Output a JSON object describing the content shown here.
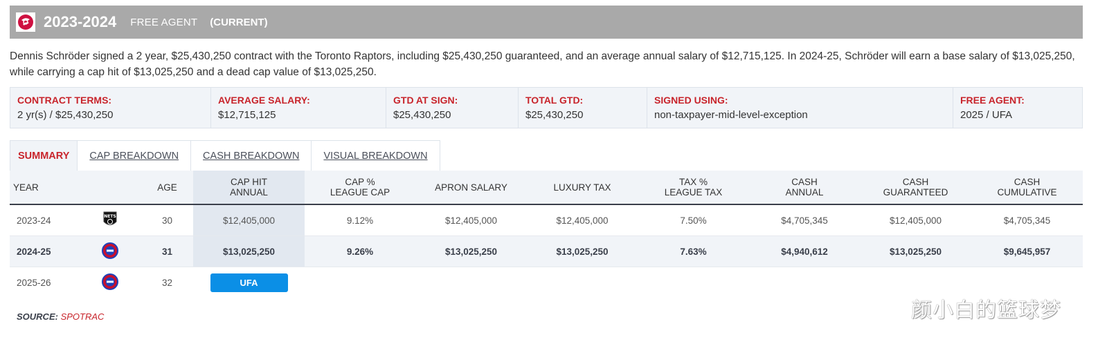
{
  "header": {
    "season": "2023-2024",
    "status": "FREE AGENT",
    "current": "(CURRENT)",
    "logo_icon": "raptors-logo-icon"
  },
  "description": "Dennis Schröder signed a 2 year, $25,430,250 contract with the Toronto Raptors, including $25,430,250 guaranteed, and an average annual salary of $12,715,125. In 2024-25, Schröder will earn a base salary of $13,025,250, while carrying a cap hit of $13,025,250 and a dead cap value of $13,025,250.",
  "terms": [
    {
      "label": "CONTRACT TERMS:",
      "value": "2 yr(s) / $25,430,250"
    },
    {
      "label": "AVERAGE SALARY:",
      "value": "$12,715,125"
    },
    {
      "label": "GTD AT SIGN:",
      "value": "$25,430,250"
    },
    {
      "label": "TOTAL GTD:",
      "value": "$25,430,250"
    },
    {
      "label": "SIGNED USING:",
      "value": "non-taxpayer-mid-level-exception"
    },
    {
      "label": "FREE AGENT:",
      "value": "2025 / UFA"
    }
  ],
  "tabs": [
    {
      "label": "SUMMARY",
      "active": true
    },
    {
      "label": "CAP BREAKDOWN"
    },
    {
      "label": "CASH BREAKDOWN"
    },
    {
      "label": "VISUAL BREAKDOWN"
    }
  ],
  "table": {
    "headers": {
      "year": "YEAR",
      "age": "AGE",
      "cap_hit_1": "CAP HIT",
      "cap_hit_2": "ANNUAL",
      "cap_pct_1": "CAP %",
      "cap_pct_2": "LEAGUE CAP",
      "apron": "APRON SALARY",
      "lux": "LUXURY TAX",
      "tax_pct_1": "TAX %",
      "tax_pct_2": "LEAGUE TAX",
      "cash_annual_1": "CASH",
      "cash_annual_2": "ANNUAL",
      "cash_gtd_1": "CASH",
      "cash_gtd_2": "GUARANTEED",
      "cash_cum_1": "CASH",
      "cash_cum_2": "CUMULATIVE"
    },
    "rows": [
      {
        "year": "2023-24",
        "team_icon": "nets-logo-icon",
        "age": "30",
        "cap_hit": "$12,405,000",
        "cap_pct": "9.12%",
        "apron": "$12,405,000",
        "lux": "$12,405,000",
        "tax_pct": "7.50%",
        "cash_annual": "$4,705,345",
        "cash_gtd": "$12,405,000",
        "cash_cum": "$4,705,345"
      },
      {
        "year": "2024-25",
        "team_icon": "pistons-logo-icon",
        "age": "31",
        "cap_hit": "$13,025,250",
        "cap_pct": "9.26%",
        "apron": "$13,025,250",
        "lux": "$13,025,250",
        "tax_pct": "7.63%",
        "cash_annual": "$4,940,612",
        "cash_gtd": "$13,025,250",
        "cash_cum": "$9,645,957"
      },
      {
        "year": "2025-26",
        "team_icon": "pistons-logo-icon",
        "age": "32",
        "status": "UFA"
      }
    ]
  },
  "source": {
    "label": "SOURCE:",
    "value": "SPOTRAC"
  },
  "watermark": "颜小白的篮球梦",
  "colors": {
    "accent_red": "#c8242b",
    "header_gray": "#a9a9a9",
    "ufa_blue": "#0b8fe6"
  }
}
